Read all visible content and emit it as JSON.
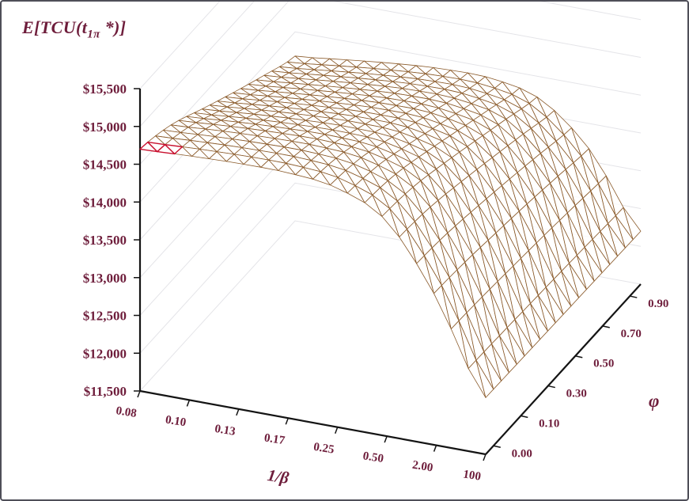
{
  "window": {
    "background": "#ffffff",
    "border_color": "#4e4e58"
  },
  "chart_data": {
    "type": "surface3d-wireframe",
    "title": {
      "text": "E[TCU(t1π *)]",
      "pre": "E[TCU(t",
      "sub": "1π",
      "post": " *)]"
    },
    "x_axis": {
      "label": "1/β",
      "ticks": [
        "0.08",
        "0.10",
        "0.13",
        "0.17",
        "0.25",
        "0.50",
        "2.00",
        "100"
      ]
    },
    "series_axis": {
      "label": "φ",
      "ticks": [
        "0.00",
        "0.10",
        "0.30",
        "0.50",
        "0.70",
        "0.90"
      ]
    },
    "z_axis": {
      "label": "E[TCU(t1π *)]",
      "min": 11500,
      "max": 15500,
      "step": 500,
      "ticks": [
        "$15,500",
        "$15,000",
        "$14,500",
        "$14,000",
        "$13,500",
        "$13,000",
        "$12,500",
        "$12,000",
        "$11,500"
      ]
    },
    "surface": {
      "inv_beta_values": [
        0.08,
        0.1,
        0.13,
        0.17,
        0.25,
        0.5,
        2.0,
        100
      ],
      "phi_values": [
        0.0,
        0.1,
        0.3,
        0.5,
        0.7,
        0.9
      ],
      "values": [
        [
          14700,
          14730,
          14750,
          14745,
          14660,
          14340,
          13450,
          12250
        ],
        [
          14570,
          14612,
          14640,
          14645,
          14575,
          14280,
          13415,
          12240
        ],
        [
          14330,
          14385,
          14428,
          14448,
          14402,
          14150,
          13355,
          12230
        ],
        [
          14095,
          14155,
          14208,
          14240,
          14212,
          14000,
          13290,
          12220
        ],
        [
          13875,
          13938,
          14000,
          14042,
          14022,
          13845,
          13212,
          12210
        ],
        [
          13680,
          13752,
          13822,
          13868,
          13858,
          13692,
          13130,
          12200
        ]
      ]
    },
    "highlight": {
      "color": "#c8102e",
      "mesh_cells": [
        [
          0,
          0
        ],
        [
          1,
          0
        ]
      ]
    },
    "grid": {
      "mesh_divisions": 20,
      "wall_gridlines": true
    },
    "colors": {
      "mesh": "#8a5a2a",
      "labels": "#6e1d3b",
      "axis": "#141414",
      "wall_grid": "#e4e4e8"
    }
  }
}
